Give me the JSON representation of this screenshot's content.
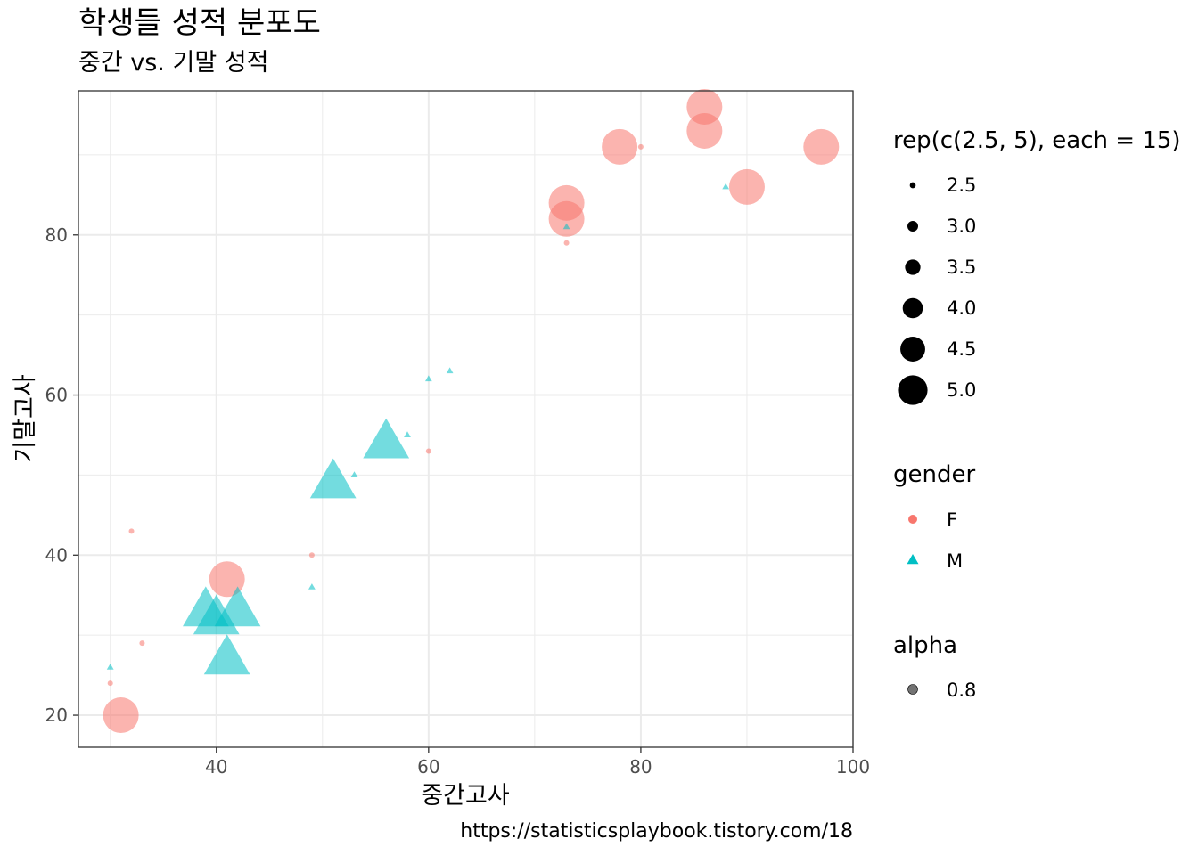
{
  "chart_data": {
    "type": "scatter",
    "title": "학생들 성적 분포도",
    "subtitle": "중간 vs. 기말 성적",
    "xlabel": "중간고사",
    "ylabel": "기말고사",
    "caption": "https://statisticsplaybook.tistory.com/18",
    "xlim": [
      27,
      100
    ],
    "ylim": [
      16,
      98
    ],
    "x_ticks": [
      40,
      60,
      80,
      100
    ],
    "y_ticks": [
      20,
      40,
      60,
      80
    ],
    "grid": true,
    "colors": {
      "F": "#F8766D",
      "M": "#00BFC4"
    },
    "point_alpha": 0.8,
    "points": [
      {
        "x": 86,
        "y": 96,
        "gender": "F",
        "size": 5
      },
      {
        "x": 86,
        "y": 93,
        "gender": "F",
        "size": 5
      },
      {
        "x": 78,
        "y": 91,
        "gender": "F",
        "size": 5
      },
      {
        "x": 97,
        "y": 91,
        "gender": "F",
        "size": 5
      },
      {
        "x": 90,
        "y": 86,
        "gender": "F",
        "size": 5
      },
      {
        "x": 73,
        "y": 84,
        "gender": "F",
        "size": 5
      },
      {
        "x": 73,
        "y": 82,
        "gender": "F",
        "size": 5
      },
      {
        "x": 41,
        "y": 37,
        "gender": "F",
        "size": 5
      },
      {
        "x": 31,
        "y": 20,
        "gender": "F",
        "size": 5
      },
      {
        "x": 80,
        "y": 91,
        "gender": "F",
        "size": 2.5
      },
      {
        "x": 73,
        "y": 79,
        "gender": "F",
        "size": 2.5
      },
      {
        "x": 60,
        "y": 53,
        "gender": "F",
        "size": 2.5
      },
      {
        "x": 49,
        "y": 40,
        "gender": "F",
        "size": 2.5
      },
      {
        "x": 32,
        "y": 43,
        "gender": "F",
        "size": 2.5
      },
      {
        "x": 33,
        "y": 29,
        "gender": "F",
        "size": 2.5
      },
      {
        "x": 30,
        "y": 24,
        "gender": "F",
        "size": 2.5
      },
      {
        "x": 88,
        "y": 86,
        "gender": "M",
        "size": 2.5
      },
      {
        "x": 73,
        "y": 81,
        "gender": "M",
        "size": 2.5
      },
      {
        "x": 62,
        "y": 63,
        "gender": "M",
        "size": 2.5
      },
      {
        "x": 60,
        "y": 62,
        "gender": "M",
        "size": 2.5
      },
      {
        "x": 58,
        "y": 55,
        "gender": "M",
        "size": 2.5
      },
      {
        "x": 53,
        "y": 50,
        "gender": "M",
        "size": 2.5
      },
      {
        "x": 49,
        "y": 36,
        "gender": "M",
        "size": 2.5
      },
      {
        "x": 30,
        "y": 26,
        "gender": "M",
        "size": 2.5
      },
      {
        "x": 56,
        "y": 54,
        "gender": "M",
        "size": 5
      },
      {
        "x": 51,
        "y": 49,
        "gender": "M",
        "size": 5
      },
      {
        "x": 39,
        "y": 33,
        "gender": "M",
        "size": 5
      },
      {
        "x": 42,
        "y": 33,
        "gender": "M",
        "size": 5
      },
      {
        "x": 40,
        "y": 32,
        "gender": "M",
        "size": 5
      },
      {
        "x": 41,
        "y": 27,
        "gender": "M",
        "size": 5
      }
    ],
    "legends": {
      "size": {
        "title": "rep(c(2.5, 5), each = 15)",
        "entries": [
          {
            "label": "2.5",
            "size": 2.5
          },
          {
            "label": "3.0",
            "size": 3.0
          },
          {
            "label": "3.5",
            "size": 3.5
          },
          {
            "label": "4.0",
            "size": 4.0
          },
          {
            "label": "4.5",
            "size": 4.5
          },
          {
            "label": "5.0",
            "size": 5.0
          }
        ]
      },
      "gender": {
        "title": "gender",
        "entries": [
          {
            "label": "F",
            "shape": "circle"
          },
          {
            "label": "M",
            "shape": "triangle"
          }
        ]
      },
      "alpha": {
        "title": "alpha",
        "entries": [
          {
            "label": "0.8"
          }
        ]
      }
    }
  }
}
